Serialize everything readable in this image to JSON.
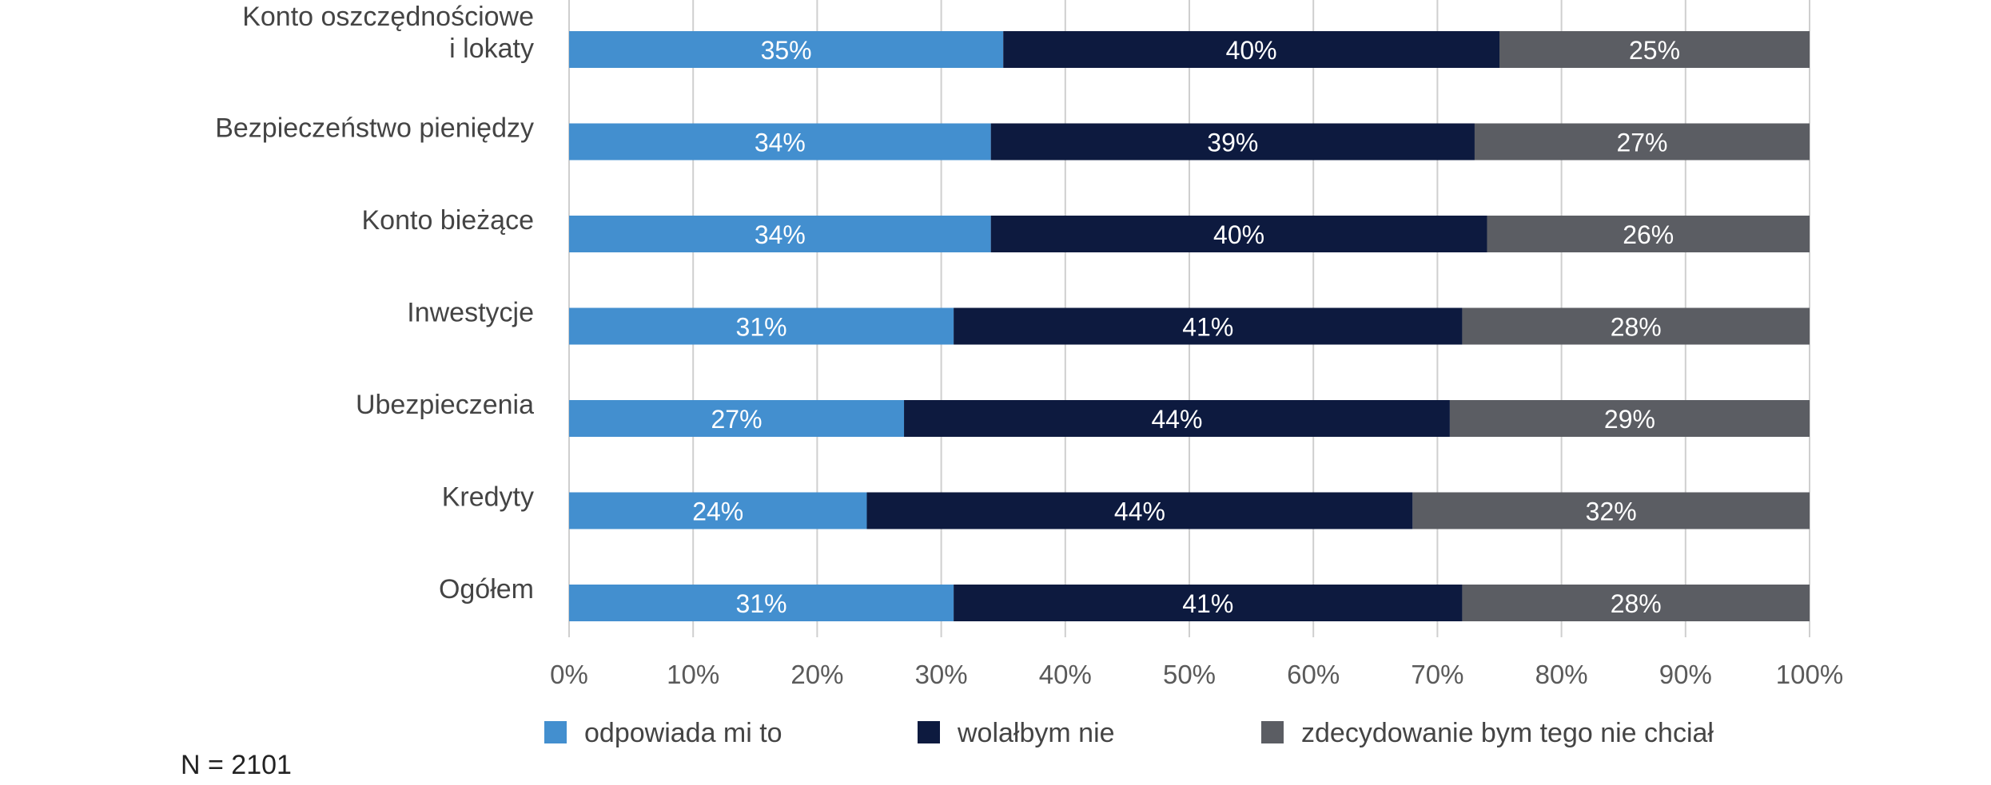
{
  "chart_data": {
    "type": "bar",
    "orientation": "horizontal",
    "stacked": true,
    "categories": [
      [
        "Konto oszczędnościowe",
        "i lokaty"
      ],
      [
        "Bezpieczeństwo pieniędzy"
      ],
      [
        "Konto bieżące"
      ],
      [
        "Inwestycje"
      ],
      [
        "Ubezpieczenia"
      ],
      [
        "Kredyty"
      ],
      [
        "Ogółem"
      ]
    ],
    "series": [
      {
        "name": "odpowiada mi to",
        "color": "#438fcf",
        "values": [
          35,
          34,
          34,
          31,
          27,
          24,
          31
        ]
      },
      {
        "name": "wolałbym nie",
        "color": "#0d1a3f",
        "values": [
          40,
          39,
          40,
          41,
          44,
          44,
          41
        ]
      },
      {
        "name": "zdecydowanie bym tego nie chciał",
        "color": "#5b5d63",
        "values": [
          25,
          27,
          26,
          28,
          29,
          32,
          28
        ]
      }
    ],
    "value_suffix": "%",
    "xlim": [
      0,
      100
    ],
    "x_ticks": [
      "0%",
      "10%",
      "20%",
      "30%",
      "40%",
      "50%",
      "60%",
      "70%",
      "80%",
      "90%",
      "100%"
    ],
    "grid": true,
    "legend_position": "bottom",
    "title": "",
    "xlabel": "",
    "ylabel": ""
  },
  "footnote": "N = 2101"
}
